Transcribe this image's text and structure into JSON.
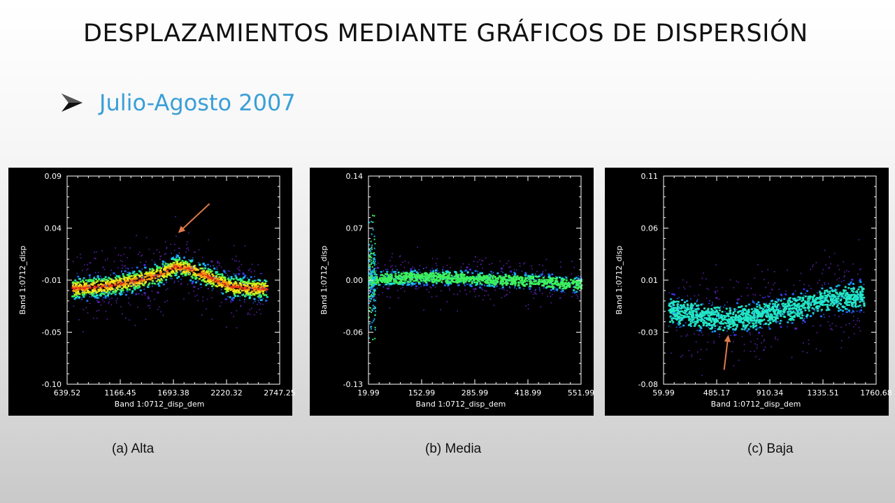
{
  "slide": {
    "title": "DESPLAZAMIENTOS MEDIANTE GRÁFICOS DE DISPERSIÓN",
    "subtitle": "Julio-Agosto 2007",
    "bullet_icon": "arrow-bullet-icon",
    "accent_color": "#3a9fd8",
    "annotation_arrow_color": "#e07a4a"
  },
  "chart_data": [
    {
      "type": "scatter",
      "caption": "(a) Alta",
      "xlabel": "Band 1:0712_disp_dem",
      "ylabel": "Band 1:0712_disp",
      "xticks": [
        "639.52",
        "1166.45",
        "1693.38",
        "2220.32",
        "2747.25"
      ],
      "yticks": [
        "0.09",
        "0.04",
        "-0.01",
        "-0.05",
        "-0.10"
      ],
      "xlim": [
        639.52,
        2747.25
      ],
      "ylim": [
        -0.1,
        0.09
      ],
      "colorscale": "density (purple-blue-cyan-green-yellow-red)",
      "trend": [
        {
          "x": 700,
          "y": -0.012
        },
        {
          "x": 1000,
          "y": -0.01
        },
        {
          "x": 1300,
          "y": -0.005
        },
        {
          "x": 1550,
          "y": 0.001
        },
        {
          "x": 1700,
          "y": 0.008
        },
        {
          "x": 1850,
          "y": 0.006
        },
        {
          "x": 2050,
          "y": -0.002
        },
        {
          "x": 2250,
          "y": -0.01
        },
        {
          "x": 2450,
          "y": -0.012
        }
      ],
      "annotation": {
        "type": "arrow",
        "target_x": 1740,
        "target_y": 0.038
      }
    },
    {
      "type": "scatter",
      "caption": "(b) Media",
      "xlabel": "Band 1:0712_disp_dem",
      "ylabel": "Band 1:0712_disp",
      "xticks": [
        "19.99",
        "152.99",
        "285.99",
        "418.99",
        "551.99"
      ],
      "yticks": [
        "0.14",
        "0.07",
        "0.00",
        "-0.06",
        "-0.13"
      ],
      "xlim": [
        19.99,
        551.99
      ],
      "ylim": [
        -0.13,
        0.14
      ],
      "colorscale": "density (purple-blue-cyan-green-yellow-red)",
      "trend": [
        {
          "x": 25,
          "y": 0.006
        },
        {
          "x": 60,
          "y": 0.008
        },
        {
          "x": 150,
          "y": 0.01
        },
        {
          "x": 250,
          "y": 0.009
        },
        {
          "x": 350,
          "y": 0.006
        },
        {
          "x": 450,
          "y": 0.004
        },
        {
          "x": 540,
          "y": 0.0
        }
      ]
    },
    {
      "type": "scatter",
      "caption": "(c) Baja",
      "xlabel": "Band 1:0712_disp_dem",
      "ylabel": "Band 1:0712_disp",
      "xticks": [
        "59.99",
        "485.17",
        "910.34",
        "1335.51",
        "1760.68"
      ],
      "yticks": [
        "0.11",
        "0.06",
        "0.01",
        "-0.03",
        "-0.08"
      ],
      "xlim": [
        59.99,
        1760.68
      ],
      "ylim": [
        -0.08,
        0.11
      ],
      "colorscale": "density (purple-blue-cyan-green-yellow-red)",
      "trend": [
        {
          "x": 80,
          "y": -0.012
        },
        {
          "x": 300,
          "y": -0.016
        },
        {
          "x": 550,
          "y": -0.02
        },
        {
          "x": 800,
          "y": -0.017
        },
        {
          "x": 1100,
          "y": -0.01
        },
        {
          "x": 1400,
          "y": -0.002
        },
        {
          "x": 1700,
          "y": 0.003
        }
      ],
      "annotation": {
        "type": "arrow",
        "target_x": 578,
        "target_y": -0.035
      }
    }
  ]
}
